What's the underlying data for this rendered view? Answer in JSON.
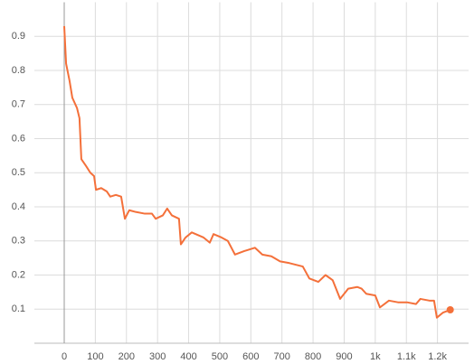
{
  "chart_data": {
    "type": "line",
    "x": [
      0,
      6,
      17,
      26,
      41,
      49,
      55,
      70,
      84,
      96,
      102,
      119,
      137,
      148,
      166,
      183,
      195,
      209,
      230,
      259,
      282,
      294,
      317,
      331,
      346,
      369,
      375,
      390,
      410,
      448,
      468,
      480,
      506,
      526,
      549,
      578,
      613,
      637,
      666,
      694,
      724,
      767,
      788,
      817,
      840,
      863,
      887,
      913,
      942,
      956,
      971,
      1000,
      1015,
      1044,
      1073,
      1102,
      1131,
      1145,
      1174,
      1189,
      1198,
      1218,
      1241
    ],
    "series": [
      {
        "color": "#f4703a",
        "values": [
          0.93,
          0.82,
          0.77,
          0.72,
          0.69,
          0.66,
          0.54,
          0.52,
          0.5,
          0.49,
          0.45,
          0.455,
          0.445,
          0.43,
          0.435,
          0.43,
          0.365,
          0.39,
          0.385,
          0.38,
          0.38,
          0.365,
          0.375,
          0.395,
          0.375,
          0.365,
          0.29,
          0.31,
          0.325,
          0.31,
          0.295,
          0.32,
          0.31,
          0.3,
          0.26,
          0.27,
          0.28,
          0.26,
          0.255,
          0.24,
          0.235,
          0.225,
          0.19,
          0.18,
          0.2,
          0.185,
          0.13,
          0.16,
          0.165,
          0.16,
          0.145,
          0.14,
          0.105,
          0.125,
          0.12,
          0.12,
          0.115,
          0.13,
          0.125,
          0.125,
          0.075,
          0.09,
          0.098
        ]
      }
    ],
    "xlim": [
      -96,
      1300
    ],
    "ylim": [
      0,
      1
    ],
    "xticks": [
      0,
      100,
      200,
      300,
      400,
      500,
      600,
      700,
      800,
      900,
      {
        "value": 1000,
        "label": "1k"
      },
      {
        "value": 1100,
        "label": "1.1k"
      },
      {
        "value": 1200,
        "label": "1.2k"
      }
    ],
    "yticks": [
      0.1,
      0.2,
      0.3,
      0.4,
      0.5,
      0.6,
      0.7,
      0.8,
      0.9
    ],
    "grid": true
  }
}
